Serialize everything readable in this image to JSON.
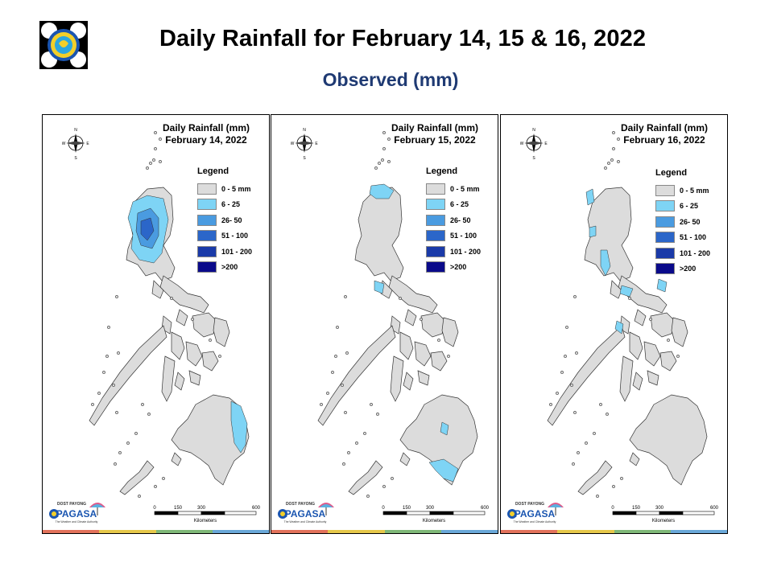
{
  "header": {
    "title": "Daily Rainfall for February 14, 15 & 16, 2022",
    "subtitle": "Observed (mm)"
  },
  "legend": {
    "title": "Legend",
    "items": [
      {
        "label": "0 - 5 mm",
        "color": "#dcdcdc"
      },
      {
        "label": "6 - 25",
        "color": "#7ed4f5"
      },
      {
        "label": "26- 50",
        "color": "#4a9be0"
      },
      {
        "label": "51 - 100",
        "color": "#2b66c9"
      },
      {
        "label": "101 - 200",
        "color": "#1a3aa8"
      },
      {
        "label": ">200",
        "color": "#0a0a8a"
      }
    ]
  },
  "compass": {
    "n": "N",
    "s": "S",
    "e": "E",
    "w": "W"
  },
  "scale": {
    "ticks": [
      "0",
      "150",
      "300",
      "600"
    ],
    "unit": "Kilometers"
  },
  "brand": {
    "top": "DOST PAYONG",
    "name": "PAGASA",
    "tagline": "The Weather and Climate Authority"
  },
  "maps": [
    {
      "map_title": "Daily Rainfall (mm)",
      "date": "February 14, 2022",
      "rain_areas": [
        {
          "region": "Northern Luzon (Cordillera & Ilocos)",
          "category": "6 - 25"
        },
        {
          "region": "Central Cordillera",
          "category": "26- 50"
        },
        {
          "region": "Cordillera core",
          "category": "51 - 100"
        },
        {
          "region": "Eastern Mindanao (Davao Oriental)",
          "category": "6 - 25"
        }
      ]
    },
    {
      "map_title": "Daily Rainfall (mm)",
      "date": "February 15, 2022",
      "rain_areas": [
        {
          "region": "Northern tip of Luzon (Cagayan)",
          "category": "6 - 25"
        },
        {
          "region": "Southern Luzon (Batangas)",
          "category": "6 - 25"
        },
        {
          "region": "Central Mindanao (Bukidnon)",
          "category": "6 - 25"
        },
        {
          "region": "Southern Mindanao (Davao del Sur)",
          "category": "6 - 25"
        }
      ]
    },
    {
      "map_title": "Daily Rainfall (mm)",
      "date": "February 16, 2022",
      "rain_areas": [
        {
          "region": "Northwestern Luzon (Ilocos)",
          "category": "6 - 25"
        },
        {
          "region": "Aurora / Quezon coast",
          "category": "6 - 25"
        },
        {
          "region": "Bicol (Catanduanes)",
          "category": "6 - 25"
        },
        {
          "region": "Samar",
          "category": "6 - 25"
        }
      ]
    }
  ]
}
